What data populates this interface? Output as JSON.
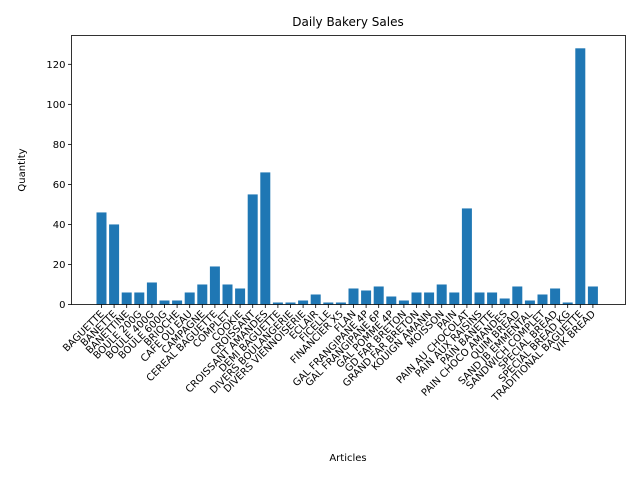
{
  "chart_data": {
    "type": "bar",
    "title": "Daily Bakery Sales",
    "xlabel": "Articles",
    "ylabel": "Quantity",
    "ylim": [
      0,
      134.4
    ],
    "yticks": [
      0,
      20,
      40,
      60,
      80,
      100,
      120
    ],
    "bar_color": "#1f77b4",
    "categories": [
      "BAGUETTE",
      "BANETTE",
      "BANETTINE",
      "BOULE 200G",
      "BOULE 400G",
      "BOULE 600G",
      "BRIOCHE",
      "CAFE OU EAU",
      "CAMPAGNE",
      "CEREAL BAGUETTE",
      "COMPLET",
      "COOKIE",
      "CROISSANT",
      "CROISSANT AMANDES",
      "DEMI BAGUETTE",
      "DIVERS BOULANGERIE",
      "DIVERS VIENNOISERIE",
      "ECLAIR",
      "FICELLE",
      "FINANCIER X5",
      "FLAN",
      "GAL FRANGIPANE 4P",
      "GAL FRANGIPANE 6P",
      "GAL POMME 4P",
      "GD FAR BRETON",
      "GRAND FAR BRETON",
      "KOUIGN AMANN",
      "MOISSON",
      "PAIN",
      "PAIN AU CHOCOLAT",
      "PAIN AUX RAISINS",
      "PAIN BANETTE",
      "PAIN CHOCO AMANDES",
      "QUIM BREAD",
      "SAND JB EMMENTAL",
      "SANDWICH COMPLET",
      "SPECIAL BREAD",
      "SPECIAL BREAD KG",
      "TRADITIONAL BAGUETTE",
      "VIK BREAD"
    ],
    "values": [
      46,
      40,
      6,
      6,
      11,
      2,
      2,
      6,
      10,
      19,
      10,
      8,
      55,
      66,
      1,
      1,
      2,
      5,
      1,
      1,
      8,
      7,
      9,
      4,
      2,
      6,
      6,
      10,
      6,
      48,
      6,
      6,
      3,
      9,
      2,
      5,
      8,
      1,
      128,
      9
    ]
  }
}
